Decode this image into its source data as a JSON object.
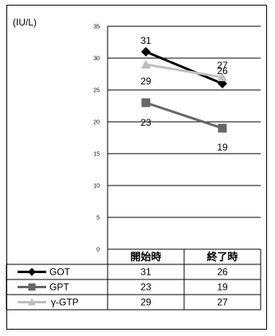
{
  "chart_data": {
    "type": "line",
    "unit_label": "(IU/L)",
    "categories": [
      "開始時",
      "終了時"
    ],
    "ylim": [
      0,
      35
    ],
    "yticks": [
      0,
      5,
      10,
      15,
      20,
      25,
      30,
      35
    ],
    "grid": true,
    "series": [
      {
        "name": "GOT",
        "values": [
          31,
          26
        ],
        "color": "#000000",
        "marker": "diamond"
      },
      {
        "name": "GPT",
        "values": [
          23,
          19
        ],
        "color": "#666666",
        "marker": "square"
      },
      {
        "name": "γ-GTP",
        "values": [
          29,
          27
        ],
        "color": "#bfbfbf",
        "marker": "triangle"
      }
    ]
  }
}
